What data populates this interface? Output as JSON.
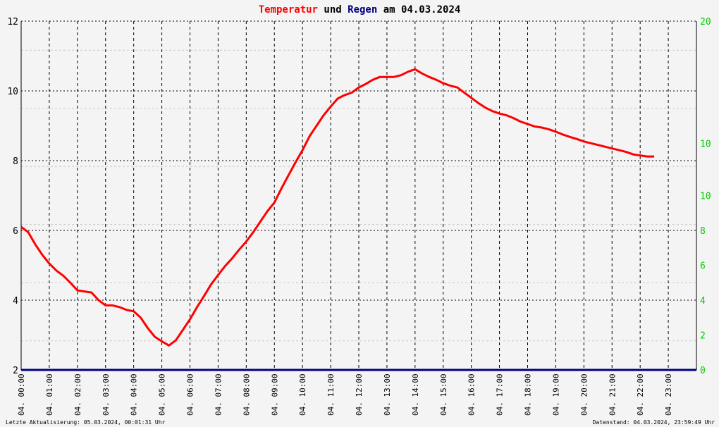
{
  "title": {
    "part1": "Temperatur",
    "part2": " und ",
    "part3": "Regen",
    "part4": " am 04.03.2024",
    "color1": "#ff0000",
    "color2": "#000000",
    "color3": "#000080",
    "color4": "#000000"
  },
  "footer": {
    "left": "Letzte Aktualisierung: 05.03.2024, 00:01:31 Uhr",
    "right": "Datenstand: 04.03.2024, 23:59:49 Uhr"
  },
  "colors": {
    "background": "#f4f4f4",
    "temperature": "#ff0000",
    "rain": "#000080",
    "right_axis_labels": "#00cc00",
    "grid_major": "#000000",
    "grid_minor": "#c8c8c8"
  },
  "chart_data": {
    "type": "line",
    "x_unit": "hours",
    "xlim": [
      0,
      24
    ],
    "x_tick_labels": [
      "04. 00:00",
      "04. 01:00",
      "04. 02:00",
      "04. 03:00",
      "04. 04:00",
      "04. 05:00",
      "04. 06:00",
      "04. 07:00",
      "04. 08:00",
      "04. 09:00",
      "04. 10:00",
      "04. 11:00",
      "04. 12:00",
      "04. 13:00",
      "04. 14:00",
      "04. 15:00",
      "04. 16:00",
      "04. 17:00",
      "04. 18:00",
      "04. 19:00",
      "04. 20:00",
      "04. 21:00",
      "04. 22:00",
      "04. 23:00"
    ],
    "left_axis": {
      "ylim": [
        2,
        12
      ],
      "ticks": [
        "2",
        "4",
        "6",
        "8",
        "10",
        "12"
      ]
    },
    "right_axis": {
      "ylim": [
        0,
        20
      ],
      "ticks": [
        "0",
        "2",
        "4",
        "6",
        "8",
        "10",
        "10",
        "20"
      ]
    },
    "grid": true,
    "series": [
      {
        "name": "Temperatur",
        "axis": "left",
        "color": "#ff0000",
        "points": [
          [
            0.0,
            6.1
          ],
          [
            0.25,
            5.95
          ],
          [
            0.5,
            5.6
          ],
          [
            0.75,
            5.3
          ],
          [
            1.0,
            5.05
          ],
          [
            1.25,
            4.85
          ],
          [
            1.5,
            4.7
          ],
          [
            1.75,
            4.5
          ],
          [
            2.0,
            4.28
          ],
          [
            2.25,
            4.25
          ],
          [
            2.5,
            4.22
          ],
          [
            2.75,
            4.0
          ],
          [
            3.0,
            3.85
          ],
          [
            3.25,
            3.85
          ],
          [
            3.5,
            3.8
          ],
          [
            3.75,
            3.72
          ],
          [
            4.0,
            3.68
          ],
          [
            4.25,
            3.5
          ],
          [
            4.5,
            3.2
          ],
          [
            4.75,
            2.95
          ],
          [
            5.0,
            2.82
          ],
          [
            5.25,
            2.7
          ],
          [
            5.5,
            2.85
          ],
          [
            5.75,
            3.15
          ],
          [
            6.0,
            3.45
          ],
          [
            6.25,
            3.8
          ],
          [
            6.5,
            4.12
          ],
          [
            6.75,
            4.45
          ],
          [
            7.0,
            4.72
          ],
          [
            7.25,
            4.98
          ],
          [
            7.5,
            5.2
          ],
          [
            7.75,
            5.45
          ],
          [
            8.0,
            5.68
          ],
          [
            8.25,
            5.95
          ],
          [
            8.5,
            6.25
          ],
          [
            8.75,
            6.55
          ],
          [
            9.0,
            6.8
          ],
          [
            9.25,
            7.2
          ],
          [
            9.5,
            7.58
          ],
          [
            9.75,
            7.95
          ],
          [
            10.0,
            8.3
          ],
          [
            10.25,
            8.7
          ],
          [
            10.5,
            9.0
          ],
          [
            10.75,
            9.3
          ],
          [
            11.0,
            9.55
          ],
          [
            11.25,
            9.78
          ],
          [
            11.5,
            9.88
          ],
          [
            11.75,
            9.95
          ],
          [
            12.0,
            10.1
          ],
          [
            12.25,
            10.2
          ],
          [
            12.5,
            10.32
          ],
          [
            12.75,
            10.4
          ],
          [
            13.0,
            10.4
          ],
          [
            13.25,
            10.4
          ],
          [
            13.5,
            10.45
          ],
          [
            13.75,
            10.55
          ],
          [
            14.0,
            10.62
          ],
          [
            14.25,
            10.5
          ],
          [
            14.5,
            10.4
          ],
          [
            14.75,
            10.32
          ],
          [
            15.0,
            10.22
          ],
          [
            15.25,
            10.15
          ],
          [
            15.5,
            10.1
          ],
          [
            15.75,
            9.95
          ],
          [
            16.0,
            9.8
          ],
          [
            16.25,
            9.65
          ],
          [
            16.5,
            9.52
          ],
          [
            16.75,
            9.42
          ],
          [
            17.0,
            9.35
          ],
          [
            17.25,
            9.3
          ],
          [
            17.5,
            9.22
          ],
          [
            17.75,
            9.12
          ],
          [
            18.0,
            9.05
          ],
          [
            18.25,
            8.98
          ],
          [
            18.5,
            8.95
          ],
          [
            18.75,
            8.9
          ],
          [
            19.0,
            8.83
          ],
          [
            19.25,
            8.75
          ],
          [
            19.5,
            8.68
          ],
          [
            19.75,
            8.62
          ],
          [
            20.0,
            8.55
          ],
          [
            20.25,
            8.5
          ],
          [
            20.5,
            8.45
          ],
          [
            20.75,
            8.4
          ],
          [
            21.0,
            8.35
          ],
          [
            21.25,
            8.3
          ],
          [
            21.5,
            8.25
          ],
          [
            21.75,
            8.18
          ],
          [
            22.0,
            8.15
          ],
          [
            22.25,
            8.12
          ],
          [
            22.5,
            8.12
          ]
        ]
      },
      {
        "name": "Regen",
        "axis": "right",
        "color": "#000080",
        "points": [
          [
            0.0,
            0
          ],
          [
            24.0,
            0
          ]
        ]
      }
    ]
  }
}
